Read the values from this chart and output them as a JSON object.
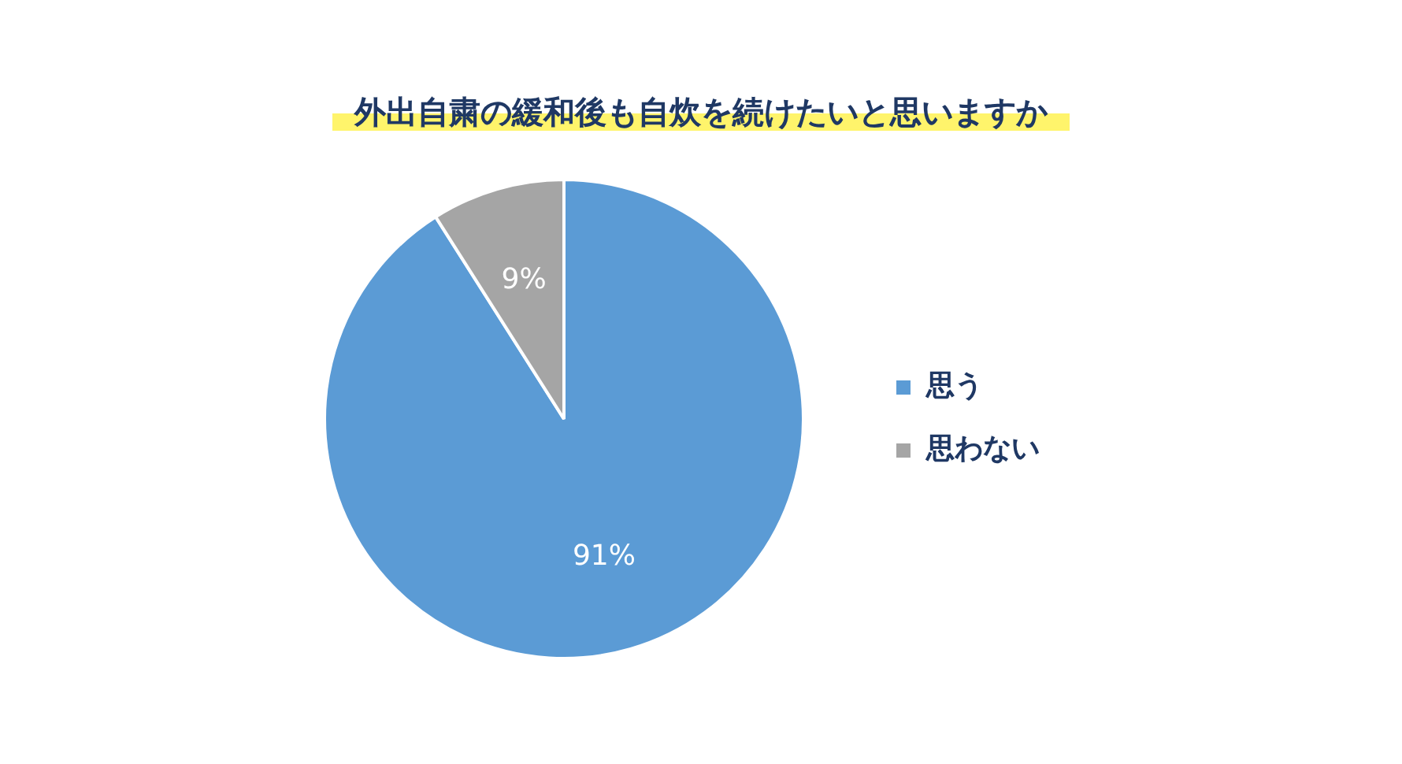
{
  "chart_data": {
    "type": "pie",
    "title": "外出自粛の緩和後も自炊を続けたいと思いますか",
    "categories": [
      "思う",
      "思わない"
    ],
    "values": [
      91,
      9
    ],
    "colors": [
      "#5b9bd5",
      "#a5a5a5"
    ],
    "value_labels": [
      "91%",
      "9%"
    ],
    "legend": "right"
  }
}
